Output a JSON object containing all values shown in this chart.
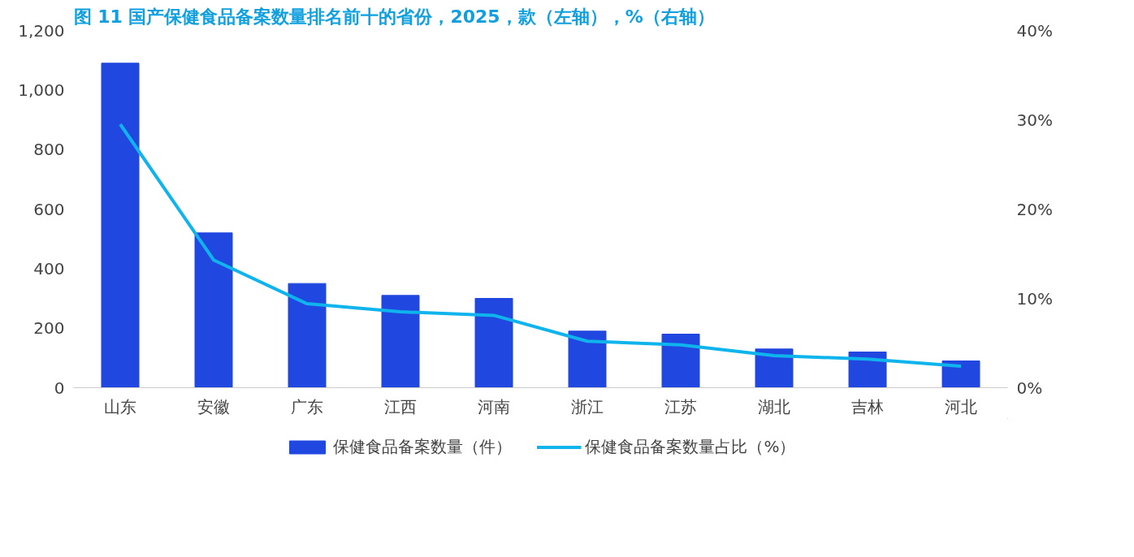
{
  "chart_data": {
    "type": "bar",
    "title": "图 11  国产保健食品备案数量排名前十的省份，2025，款（左轴），%（右轴）",
    "categories": [
      "山东",
      "安徽",
      "广东",
      "江西",
      "河南",
      "浙江",
      "江苏",
      "湖北",
      "吉林",
      "河北"
    ],
    "series": [
      {
        "name": "保健食品备案数量（件）",
        "color": "#2048e0",
        "values": [
          1090,
          520,
          350,
          310,
          300,
          190,
          180,
          130,
          120,
          90
        ]
      },
      {
        "name": "保健食品备案数量占比（%）",
        "type": "line",
        "axis": "y2",
        "color": "#10b4ec",
        "values": [
          29.5,
          14.3,
          9.4,
          8.5,
          8.1,
          5.2,
          4.8,
          3.6,
          3.2,
          2.4
        ]
      }
    ],
    "ylim": [
      0,
      1200
    ],
    "yticks": [
      {
        "value": 0,
        "label": "0"
      },
      {
        "value": 200,
        "label": "200"
      },
      {
        "value": 400,
        "label": "400"
      },
      {
        "value": 600,
        "label": "600"
      },
      {
        "value": 800,
        "label": "800"
      },
      {
        "value": 1000,
        "label": "1,000"
      },
      {
        "value": 1200,
        "label": "1,200"
      }
    ],
    "y2lim": [
      0,
      40
    ],
    "y2ticks": [
      {
        "value": 0,
        "label": "0%"
      },
      {
        "value": 10,
        "label": "10%"
      },
      {
        "value": 20,
        "label": "20%"
      },
      {
        "value": 30,
        "label": "30%"
      },
      {
        "value": 40,
        "label": "40%"
      }
    ],
    "grid": false,
    "legend": "bottom"
  }
}
